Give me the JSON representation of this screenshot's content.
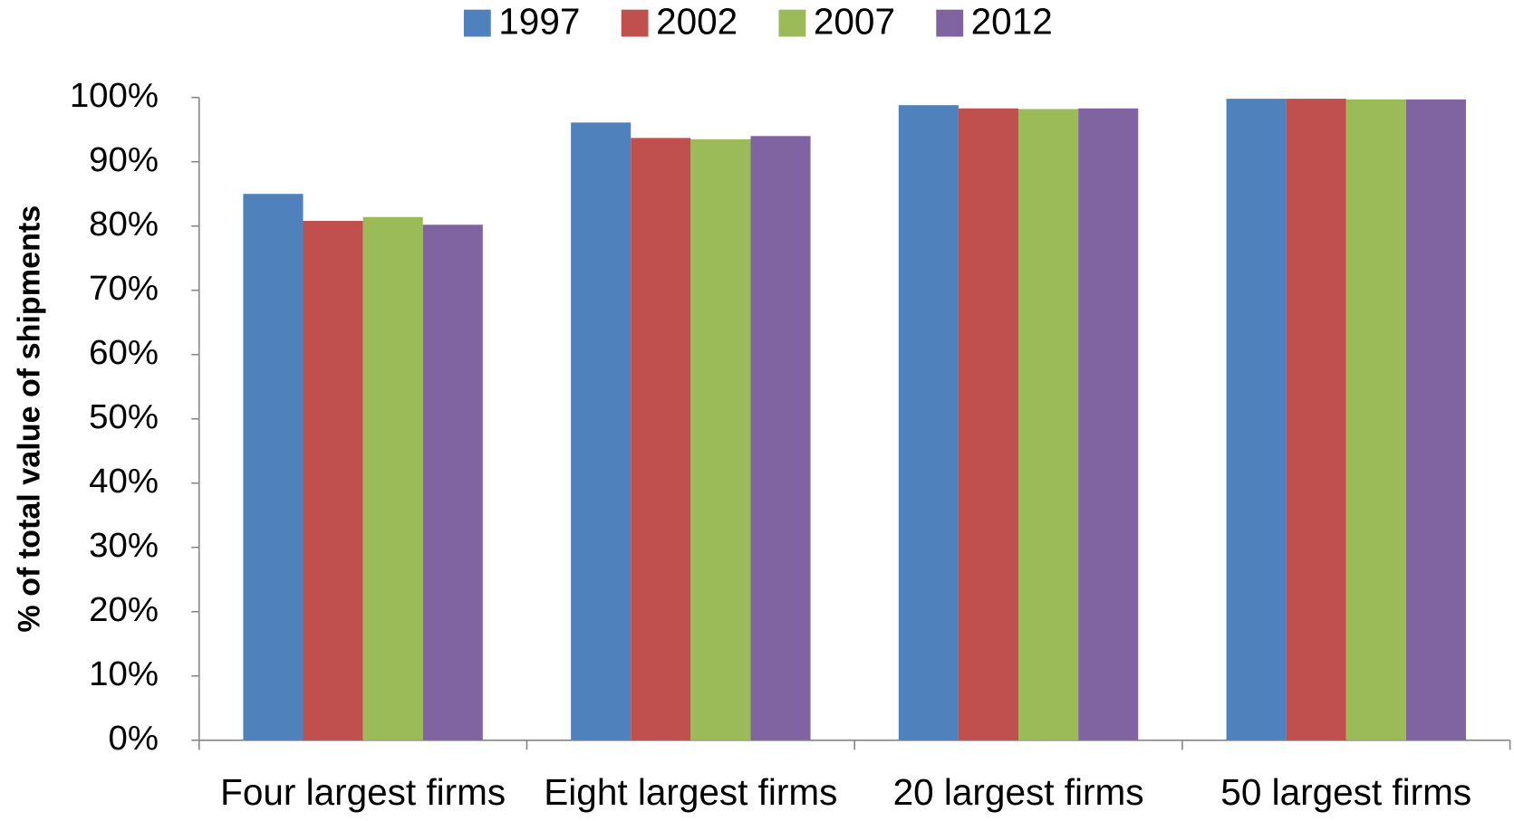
{
  "chart_data": {
    "type": "bar",
    "y_label": "% of total value of shipments",
    "categories": [
      "Four largest firms",
      "Eight largest firms",
      "20 largest firms",
      "50 largest firms"
    ],
    "series": [
      {
        "name": "1997",
        "color": "#4f81bd",
        "values": [
          85.0,
          96.1,
          98.8,
          99.8
        ]
      },
      {
        "name": "2002",
        "color": "#c0504d",
        "values": [
          80.8,
          93.7,
          98.3,
          99.8
        ]
      },
      {
        "name": "2007",
        "color": "#9bbb59",
        "values": [
          81.4,
          93.5,
          98.2,
          99.7
        ]
      },
      {
        "name": "2012",
        "color": "#8064a2",
        "values": [
          80.2,
          94.0,
          98.3,
          99.7
        ]
      }
    ],
    "ylim": [
      0,
      100
    ],
    "yticks": [
      {
        "value": 0,
        "label": "0%"
      },
      {
        "value": 10,
        "label": "10%"
      },
      {
        "value": 20,
        "label": "20%"
      },
      {
        "value": 30,
        "label": "30%"
      },
      {
        "value": 40,
        "label": "40%"
      },
      {
        "value": 50,
        "label": "50%"
      },
      {
        "value": 60,
        "label": "60%"
      },
      {
        "value": 70,
        "label": "70%"
      },
      {
        "value": 80,
        "label": "80%"
      },
      {
        "value": 90,
        "label": "90%"
      },
      {
        "value": 100,
        "label": "100%"
      }
    ],
    "legend": "top",
    "grid": false
  }
}
